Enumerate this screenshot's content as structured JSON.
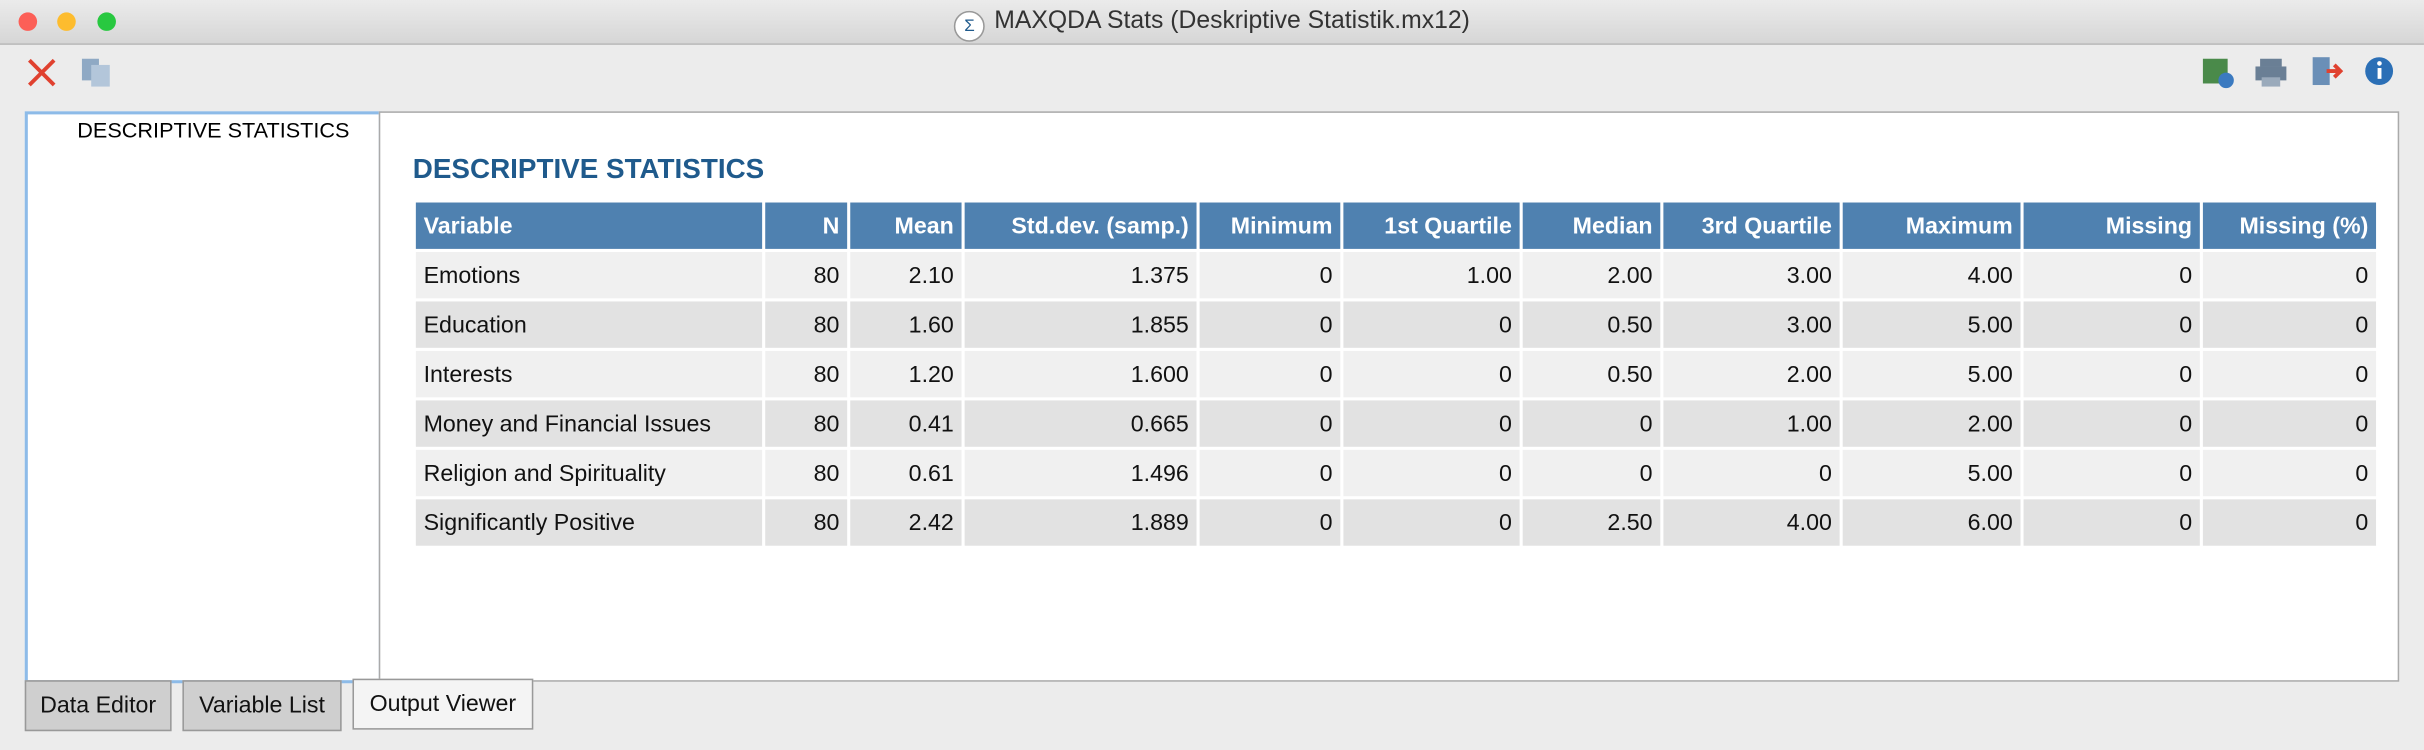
{
  "window": {
    "title": "MAXQDA Stats (Deskriptive Statistik.mx12)"
  },
  "tree": {
    "items": [
      "DESCRIPTIVE STATISTICS"
    ]
  },
  "output": {
    "title": "DESCRIPTIVE STATISTICS",
    "table": {
      "columns": [
        "Variable",
        "N",
        "Mean",
        "Std.dev. (samp.)",
        "Minimum",
        "1st Quartile",
        "Median",
        "3rd Quartile",
        "Maximum",
        "Missing",
        "Missing (%)"
      ],
      "rows": [
        [
          "Emotions",
          "80",
          "2.10",
          "1.375",
          "0",
          "1.00",
          "2.00",
          "3.00",
          "4.00",
          "0",
          "0"
        ],
        [
          "Education",
          "80",
          "1.60",
          "1.855",
          "0",
          "0",
          "0.50",
          "3.00",
          "5.00",
          "0",
          "0"
        ],
        [
          "Interests",
          "80",
          "1.20",
          "1.600",
          "0",
          "0",
          "0.50",
          "2.00",
          "5.00",
          "0",
          "0"
        ],
        [
          "Money and Financial Issues",
          "80",
          "0.41",
          "0.665",
          "0",
          "0",
          "0",
          "1.00",
          "2.00",
          "0",
          "0"
        ],
        [
          "Religion and Spirituality",
          "80",
          "0.61",
          "1.496",
          "0",
          "0",
          "0",
          "0",
          "5.00",
          "0",
          "0"
        ],
        [
          "Significantly Positive",
          "80",
          "2.42",
          "1.889",
          "0",
          "0",
          "2.50",
          "4.00",
          "6.00",
          "0",
          "0"
        ]
      ]
    }
  },
  "tabs": [
    "Data Editor",
    "Variable List",
    "Output Viewer"
  ]
}
